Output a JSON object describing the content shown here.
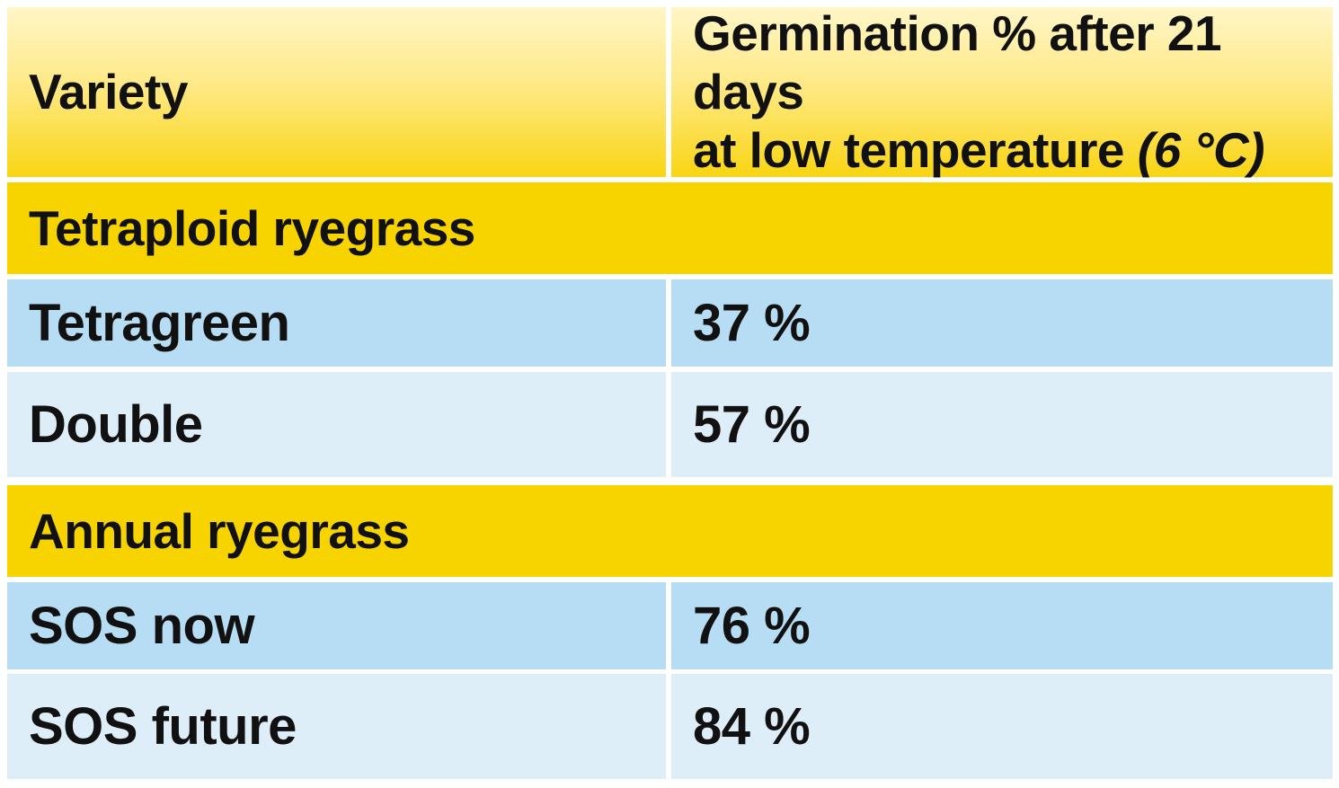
{
  "chart_data": {
    "type": "table",
    "columns": [
      "Variety",
      "Germination % after 21 days at low temperature (6 °C)"
    ],
    "header": {
      "variety": "Variety",
      "germination_line1": "Germination % after 21 days",
      "germination_line2": "at low temperature ",
      "germination_line2_italic": "(6 °C)"
    },
    "groups": [
      {
        "name": "Tetraploid ryegrass",
        "rows": [
          {
            "variety": "Tetragreen",
            "germination": "37 %",
            "value": 37
          },
          {
            "variety": "Double",
            "germination": "57 %",
            "value": 57
          }
        ]
      },
      {
        "name": "Annual ryegrass",
        "rows": [
          {
            "variety": "SOS now",
            "germination": "76 %",
            "value": 76
          },
          {
            "variety": "SOS future",
            "germination": "84 %",
            "value": 84
          }
        ]
      }
    ],
    "colors": {
      "header": "#ffe986",
      "group": "#f7d400",
      "row_dark": "#b6ddf3",
      "row_light": "#ddeef9"
    }
  }
}
